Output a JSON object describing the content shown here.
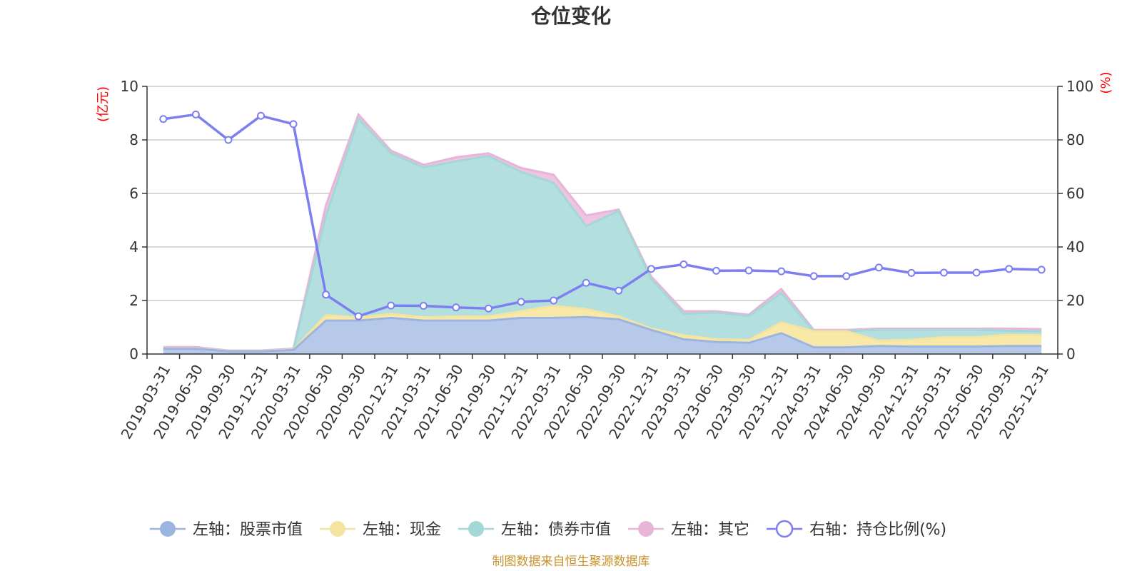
{
  "chart_data": {
    "type": "area",
    "title": "仓位变化",
    "left_unit": "(亿元)",
    "right_unit": "(%)",
    "ylim_left": [
      0,
      10
    ],
    "ylim_right": [
      0,
      100
    ],
    "left_ticks": [
      "0",
      "2",
      "4",
      "6",
      "8",
      "10"
    ],
    "right_ticks": [
      "0",
      "20",
      "40",
      "60",
      "80",
      "100"
    ],
    "categories": [
      "2019-03-31",
      "2019-06-30",
      "2019-09-30",
      "2019-12-31",
      "2020-03-31",
      "2020-06-30",
      "2020-09-30",
      "2020-12-31",
      "2021-03-31",
      "2021-06-30",
      "2021-09-30",
      "2021-12-31",
      "2022-03-31",
      "2022-06-30",
      "2022-09-30",
      "2022-12-31",
      "2023-03-31",
      "2023-06-30",
      "2023-09-30",
      "2023-12-31",
      "2024-03-31",
      "2024-06-30",
      "2024-09-30",
      "2024-12-31",
      "2025-03-31",
      "2025-06-30",
      "2025-09-30",
      "2025-12-31"
    ],
    "series": [
      {
        "name": "左轴：股票市值",
        "axis": "left",
        "color": "#9bb5e0",
        "fill": "#b7c9e8",
        "values": [
          0.2,
          0.2,
          0.1,
          0.1,
          0.15,
          1.25,
          1.25,
          1.35,
          1.25,
          1.25,
          1.25,
          1.35,
          1.35,
          1.38,
          1.3,
          0.9,
          0.55,
          0.45,
          0.42,
          0.78,
          0.25,
          0.25,
          0.3,
          0.28,
          0.28,
          0.28,
          0.3,
          0.3
        ]
      },
      {
        "name": "左轴：现金",
        "axis": "left",
        "color": "#f5e4a0",
        "fill": "#f8e9a8",
        "values": [
          0.01,
          0.01,
          0.01,
          0.01,
          0.01,
          0.2,
          0.1,
          0.15,
          0.12,
          0.15,
          0.15,
          0.25,
          0.45,
          0.3,
          0.1,
          0.05,
          0.15,
          0.1,
          0.1,
          0.4,
          0.6,
          0.6,
          0.2,
          0.25,
          0.35,
          0.35,
          0.42,
          0.4
        ]
      },
      {
        "name": "左轴：债券市值",
        "axis": "left",
        "color": "#a3d8d6",
        "fill": "#b3e0df",
        "values": [
          0,
          0,
          0,
          0,
          0,
          3.7,
          7.45,
          6.0,
          5.6,
          5.8,
          6.0,
          5.2,
          4.6,
          3.1,
          3.95,
          1.85,
          0.8,
          1.0,
          0.9,
          1.1,
          0,
          0,
          0.4,
          0.37,
          0.27,
          0.27,
          0.15,
          0.15
        ]
      },
      {
        "name": "左轴：其它",
        "axis": "left",
        "color": "#e8b4d8",
        "fill": "#eec4e0",
        "values": [
          0.05,
          0.05,
          0.02,
          0.02,
          0.04,
          0.4,
          0.15,
          0.1,
          0.1,
          0.15,
          0.1,
          0.15,
          0.3,
          0.4,
          0.05,
          0.1,
          0.1,
          0.05,
          0.05,
          0.15,
          0.05,
          0.05,
          0.05,
          0.05,
          0.05,
          0.05,
          0.08,
          0.08
        ]
      },
      {
        "name": "右轴：持仓比例(%)",
        "axis": "right",
        "color": "#7b7ff0",
        "values": [
          87.8,
          89.5,
          80,
          89,
          85.9,
          22.2,
          14.1,
          18.1,
          18.0,
          17.4,
          17.0,
          19.5,
          20.0,
          26.6,
          23.7,
          31.8,
          33.5,
          31.1,
          31.2,
          30.9,
          29.1,
          29.1,
          32.3,
          30.3,
          30.4,
          30.4,
          31.8,
          31.5
        ]
      }
    ],
    "legend_position": "bottom",
    "grid": true
  },
  "source": "制图数据来自恒生聚源数据库"
}
